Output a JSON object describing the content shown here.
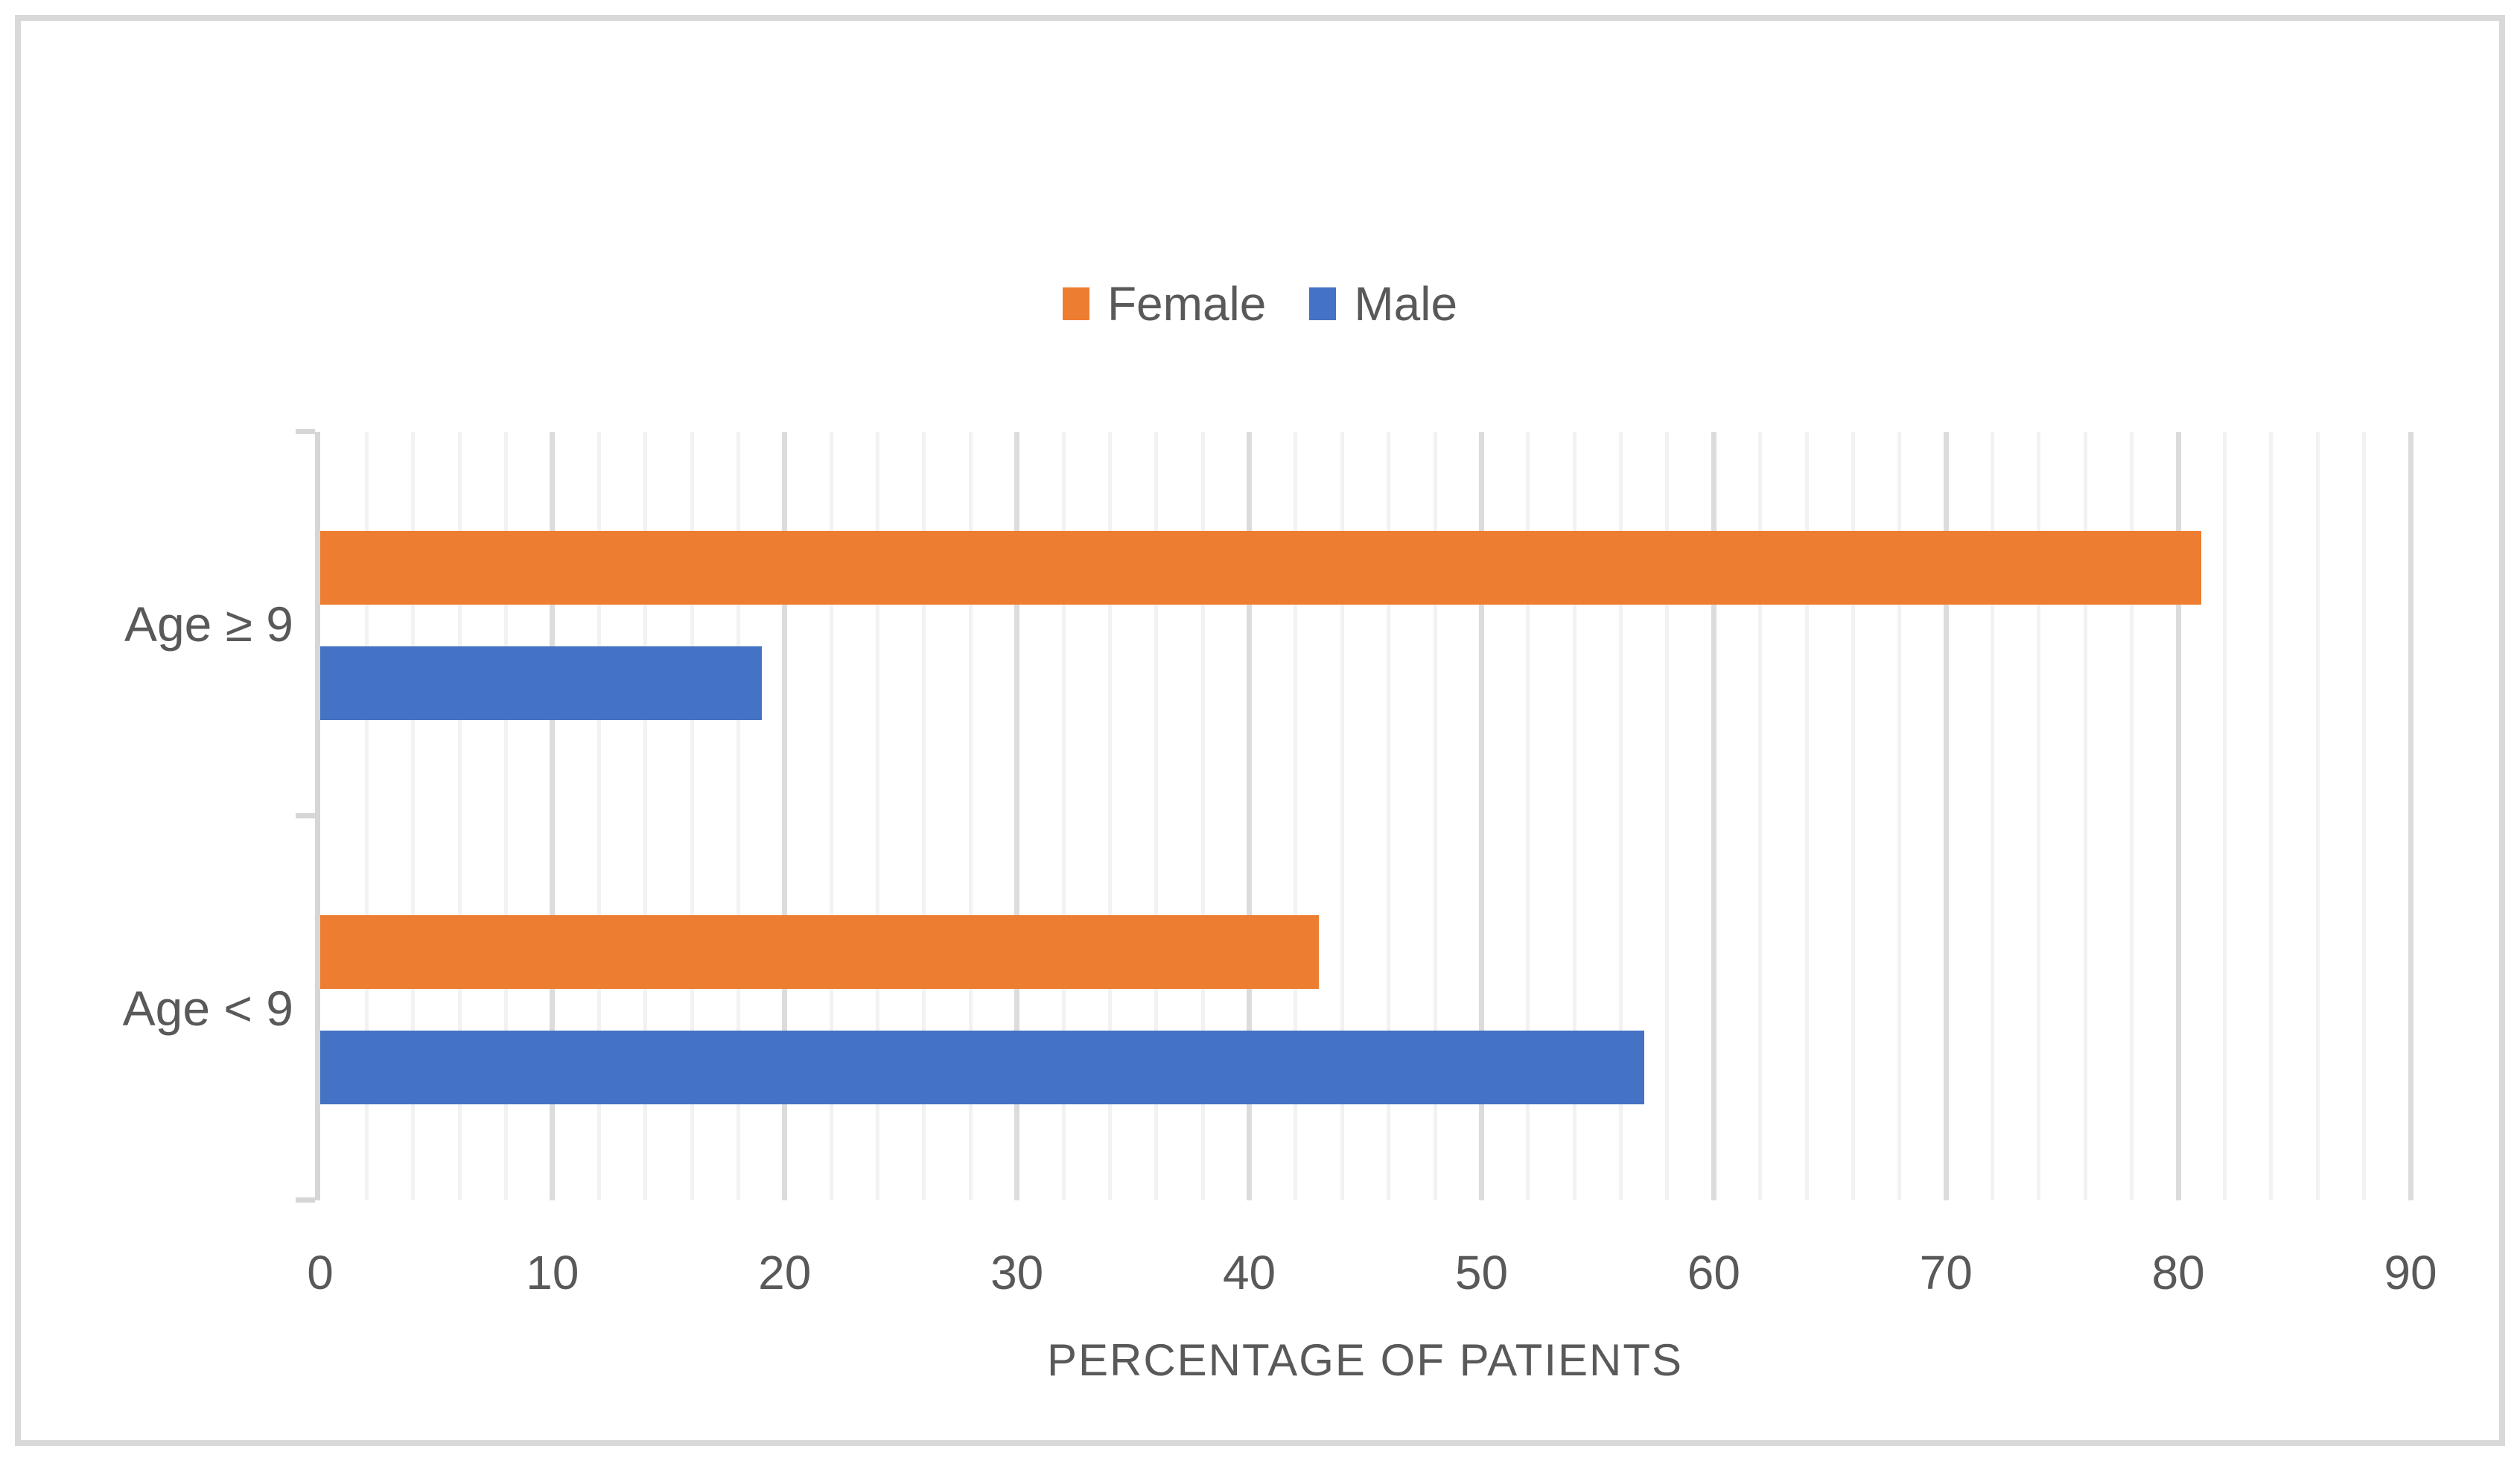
{
  "chart_data": {
    "type": "bar",
    "orientation": "horizontal",
    "xlabel": "PERCENTAGE OF PATIENTS",
    "categories": [
      "Age ≥ 9",
      "Age < 9"
    ],
    "series": [
      {
        "name": "Female",
        "color": "#ED7D31",
        "values": [
          81,
          43
        ]
      },
      {
        "name": "Male",
        "color": "#4472C4",
        "values": [
          19,
          57
        ]
      }
    ],
    "xlim": [
      0,
      90
    ],
    "x_ticks": [
      0,
      10,
      20,
      30,
      40,
      50,
      60,
      70,
      80,
      90
    ],
    "grid": {
      "on": true,
      "minor_step": 2,
      "major_step": 10,
      "minor_color": "#F2F2F2",
      "major_color": "#DCDCDC"
    },
    "legend": {
      "position": "top-center"
    },
    "colors": {
      "axis": "#D6D6D6",
      "text": "#595959",
      "border": "#D9D9D9"
    }
  }
}
